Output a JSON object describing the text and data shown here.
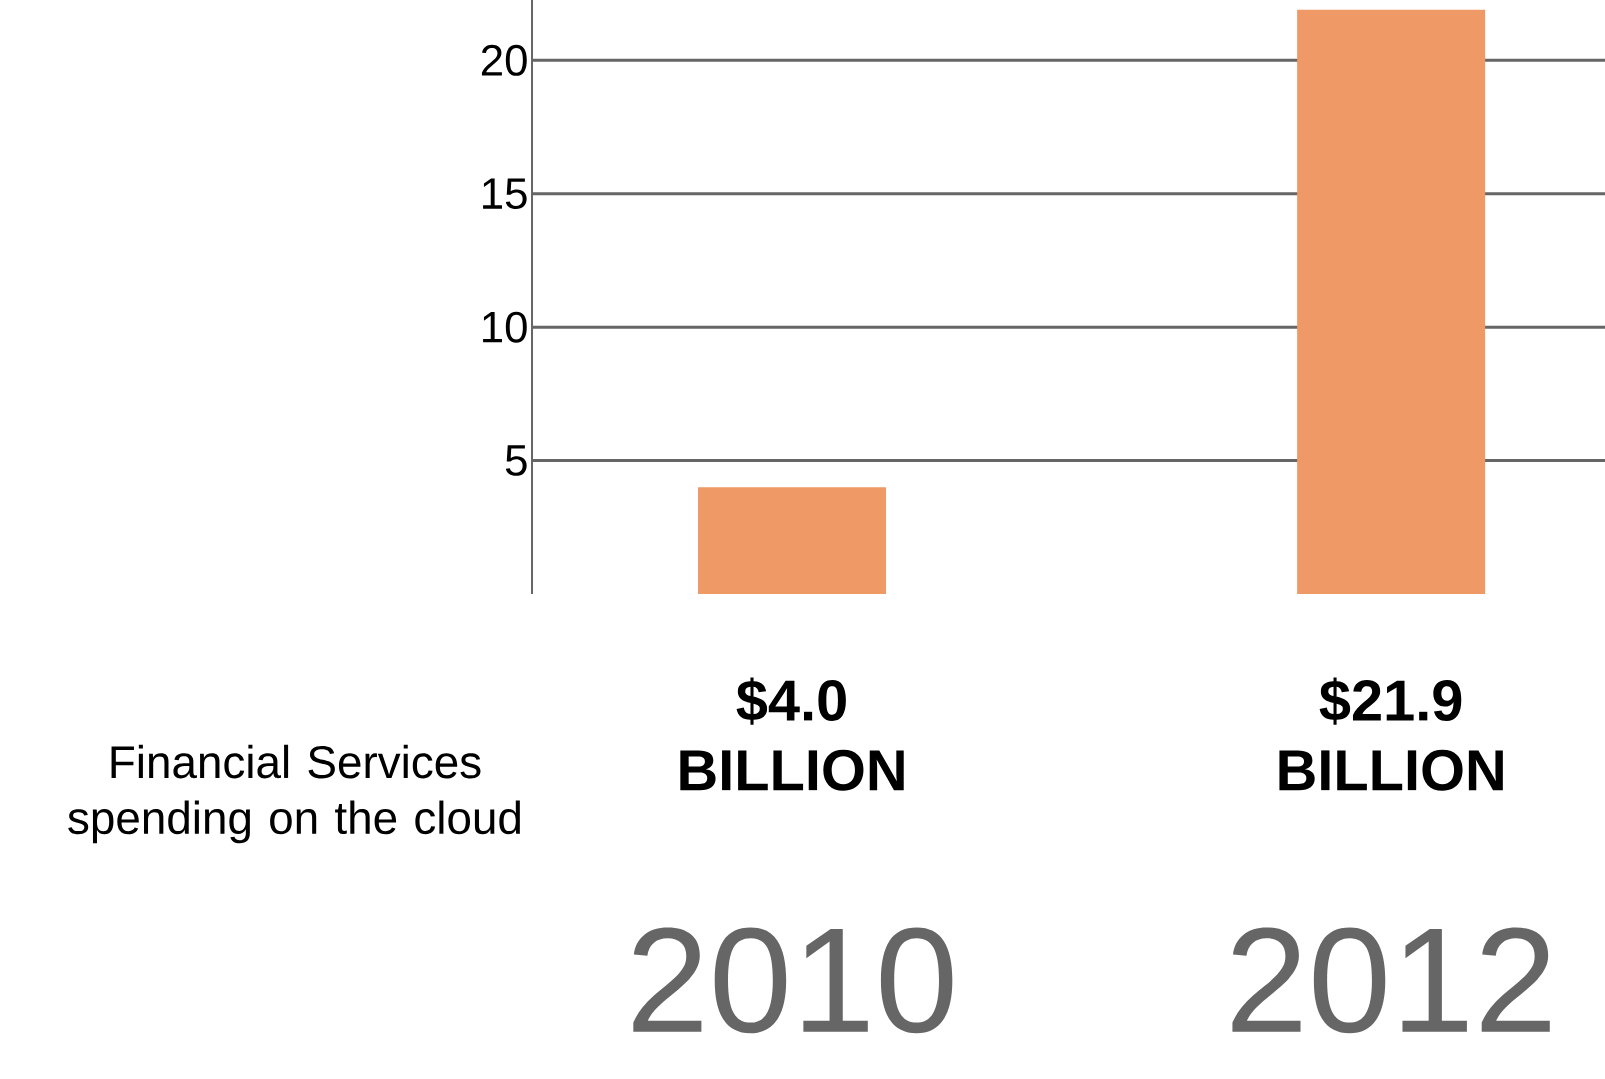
{
  "chart_data": {
    "type": "bar",
    "title": "Financial Services spending on the cloud",
    "categories": [
      "2010",
      "2012"
    ],
    "values": [
      4.0,
      21.9
    ],
    "value_labels": [
      "$4.0 BILLION",
      "$21.9 BILLION"
    ],
    "color": "#ee9966",
    "ylim": [
      0,
      22.3
    ],
    "yticks": [
      5,
      10,
      15,
      20
    ],
    "grid": "y"
  }
}
